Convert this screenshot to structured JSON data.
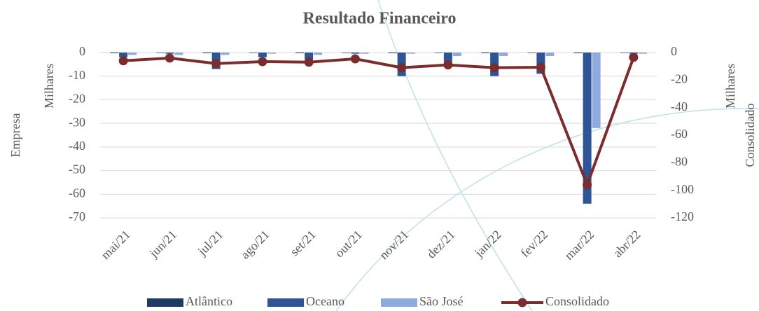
{
  "chart_data": {
    "type": "bar",
    "title": "Resultado Financeiro",
    "ylabel": "Empresa",
    "yunit": "Milhares",
    "y2label": "Consolidado",
    "y2unit": "Milhares",
    "categories": [
      "mai/21",
      "jun/21",
      "jul/21",
      "ago/21",
      "set/21",
      "out/21",
      "nov/21",
      "dez/21",
      "jan/22",
      "fev/22",
      "mar/22",
      "abr/22"
    ],
    "series": [
      {
        "name": "Atlântico",
        "color": "#1f3864",
        "values": [
          -0.3,
          -0.2,
          -0.3,
          -0.2,
          -0.3,
          -0.2,
          -0.3,
          -0.2,
          -0.3,
          -0.2,
          -0.3,
          -0.2
        ]
      },
      {
        "name": "Oceano",
        "color": "#2f5597",
        "values": [
          -2,
          -0.5,
          -7,
          -2,
          -3,
          -0.5,
          -10,
          -5,
          -10,
          -9,
          -64,
          -0.5
        ]
      },
      {
        "name": "São  José",
        "color": "#8faadc",
        "values": [
          -1,
          -1,
          -1,
          -0.5,
          -1,
          -0.5,
          -0.5,
          -1.5,
          -1.5,
          -1.5,
          -32,
          -0.5
        ]
      },
      {
        "name": "Consolidado",
        "color": "#7b2c2c",
        "axis": "y2",
        "values": [
          -6,
          -4,
          -8,
          -6.6,
          -7,
          -4.6,
          -11,
          -9,
          -11,
          -10.7,
          -96,
          -3.5
        ]
      }
    ],
    "ylim": [
      0,
      -70
    ],
    "yticks": [
      0,
      -10,
      -20,
      -30,
      -40,
      -50,
      -60,
      -70
    ],
    "y2lim": [
      0,
      -120
    ],
    "y2ticks": [
      0,
      -20,
      -40,
      -60,
      -80,
      -100,
      -120
    ],
    "grid": true,
    "legend": "bottom"
  }
}
